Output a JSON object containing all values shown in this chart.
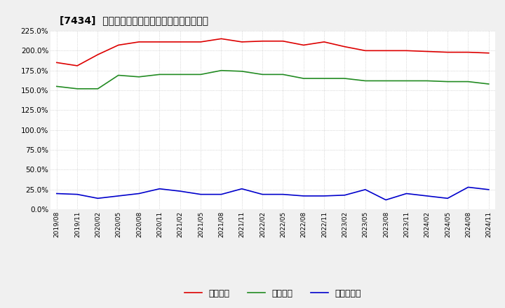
{
  "title": "[7434]  流動比率、当座比率、現預金比率の推移",
  "x_labels": [
    "2019/08",
    "2019/11",
    "2020/02",
    "2020/05",
    "2020/08",
    "2020/11",
    "2021/02",
    "2021/05",
    "2021/08",
    "2021/11",
    "2022/02",
    "2022/05",
    "2022/08",
    "2022/11",
    "2023/02",
    "2023/05",
    "2023/08",
    "2023/11",
    "2024/02",
    "2024/05",
    "2024/08",
    "2024/11"
  ],
  "ryudo": [
    185,
    181,
    195,
    207,
    211,
    211,
    211,
    211,
    215,
    211,
    212,
    212,
    207,
    211,
    205,
    200,
    200,
    200,
    199,
    198,
    198,
    197
  ],
  "touza": [
    155,
    152,
    152,
    169,
    167,
    170,
    170,
    170,
    175,
    174,
    170,
    170,
    165,
    165,
    165,
    162,
    162,
    162,
    162,
    161,
    161,
    158
  ],
  "genyo": [
    20,
    19,
    14,
    17,
    20,
    26,
    23,
    19,
    19,
    26,
    19,
    19,
    17,
    17,
    18,
    25,
    12,
    20,
    17,
    14,
    28,
    25
  ],
  "ryudo_color": "#dd0000",
  "touza_color": "#228B22",
  "genyo_color": "#0000cc",
  "bg_color": "#f0f0f0",
  "plot_bg_color": "#ffffff",
  "grid_color": "#aaaaaa",
  "ylim": [
    0,
    225
  ],
  "yticks": [
    0,
    25,
    50,
    75,
    100,
    125,
    150,
    175,
    200,
    225
  ],
  "legend_labels": [
    "流動比率",
    "当座比率",
    "現預金比率"
  ]
}
